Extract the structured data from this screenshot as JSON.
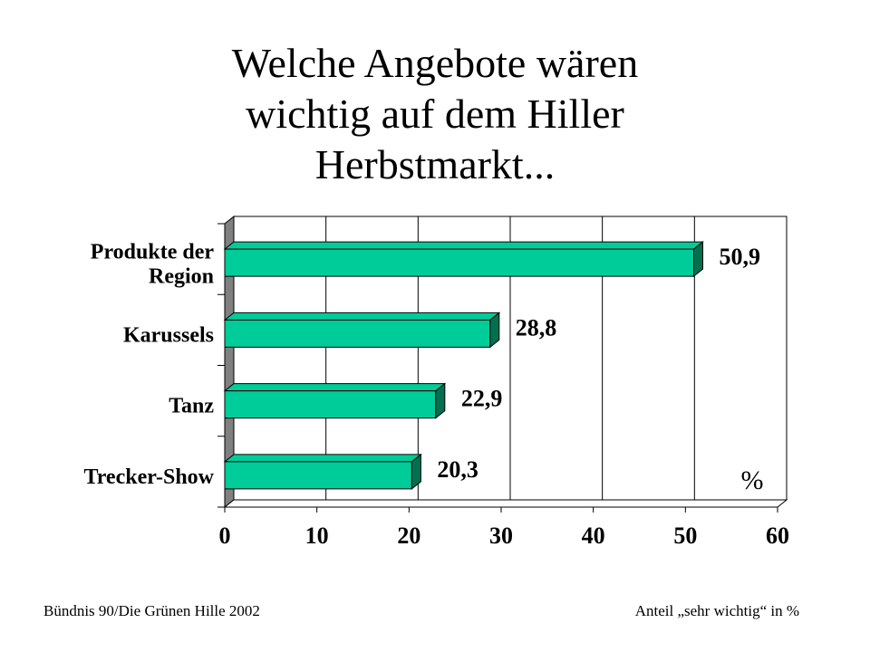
{
  "title": [
    "Welche Angebote wären",
    "wichtig auf dem Hiller",
    "Herbstmarkt..."
  ],
  "footer": {
    "source": "Bündnis 90/Die Grünen Hille 2002",
    "note": "Anteil „sehr wichtig“ in %"
  },
  "chart_data": {
    "type": "bar",
    "orientation": "horizontal",
    "categories": [
      [
        "Produkte der",
        "Region"
      ],
      [
        "Karussels"
      ],
      [
        "Tanz"
      ],
      [
        "Trecker-Show"
      ]
    ],
    "values": [
      50.9,
      28.8,
      22.9,
      20.3
    ],
    "value_labels": [
      "50,9",
      "28,8",
      "22,9",
      "20,3"
    ],
    "xlim": [
      0,
      60
    ],
    "xticks": [
      "0",
      "10",
      "20",
      "30",
      "40",
      "50",
      "60"
    ],
    "unit_label": "%",
    "grid": true,
    "bar_color": "#00cc99",
    "bar_side_color": "#007050"
  }
}
